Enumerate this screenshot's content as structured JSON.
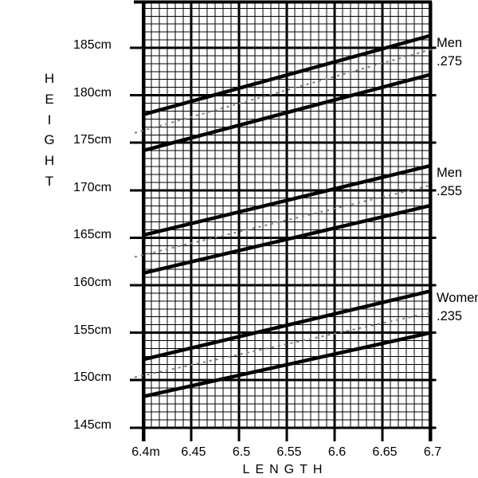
{
  "colors": {
    "background": "#ffffff",
    "grid_line": "#000000",
    "solid_line": "#000000",
    "dotted_line": "#7d7d7d",
    "text": "#000000"
  },
  "chart_data": {
    "type": "line",
    "title": "",
    "xlabel": "LENGTH",
    "ylabel": "HEIGHT",
    "xlim": [
      6.4,
      6.7
    ],
    "ylim": [
      145,
      190
    ],
    "grid": {
      "style": "graph-paper",
      "minor_divisions_per_major": 6,
      "major_x_step": 0.05,
      "major_y_step_cm": 5
    },
    "x_ticks": [
      {
        "value": 6.4,
        "label": "6.4m"
      },
      {
        "value": 6.45,
        "label": "6.45"
      },
      {
        "value": 6.5,
        "label": "6.5"
      },
      {
        "value": 6.55,
        "label": "6.55"
      },
      {
        "value": 6.6,
        "label": "6.6"
      },
      {
        "value": 6.65,
        "label": "6.65"
      },
      {
        "value": 6.7,
        "label": "6.7"
      }
    ],
    "y_ticks": [
      {
        "value": 185,
        "label": "185cm"
      },
      {
        "value": 180,
        "label": "180cm"
      },
      {
        "value": 175,
        "label": "175cm"
      },
      {
        "value": 170,
        "label": "170cm"
      },
      {
        "value": 165,
        "label": "165cm"
      },
      {
        "value": 160,
        "label": "160cm"
      },
      {
        "value": 155,
        "label": "155cm"
      },
      {
        "value": 150,
        "label": "150cm"
      },
      {
        "value": 145,
        "label": "145cm"
      }
    ],
    "series_groups": [
      {
        "name": "Men .275",
        "label_lines": [
          "Men",
          ".275"
        ],
        "lines": [
          {
            "role": "upper_bound",
            "style": "solid",
            "x": [
              6.4,
              6.7
            ],
            "height_cm": [
              178.0,
              186.3
            ]
          },
          {
            "role": "mean",
            "style": "dotted",
            "x": [
              6.4,
              6.7
            ],
            "height_cm": [
              176.3,
              184.8
            ]
          },
          {
            "role": "lower_bound",
            "style": "solid",
            "x": [
              6.4,
              6.7
            ],
            "height_cm": [
              174.2,
              182.2
            ]
          }
        ]
      },
      {
        "name": "Men .255",
        "label_lines": [
          "Men",
          ".255"
        ],
        "lines": [
          {
            "role": "upper_bound",
            "style": "solid",
            "x": [
              6.4,
              6.7
            ],
            "height_cm": [
              165.3,
              172.6
            ]
          },
          {
            "role": "mean",
            "style": "dotted",
            "x": [
              6.4,
              6.7
            ],
            "height_cm": [
              163.2,
              170.5
            ]
          },
          {
            "role": "lower_bound",
            "style": "solid",
            "x": [
              6.4,
              6.7
            ],
            "height_cm": [
              161.3,
              168.4
            ]
          }
        ]
      },
      {
        "name": "Women .235",
        "label_lines": [
          "Women",
          ".235"
        ],
        "lines": [
          {
            "role": "upper_bound",
            "style": "solid",
            "x": [
              6.4,
              6.7
            ],
            "height_cm": [
              152.2,
              159.4
            ]
          },
          {
            "role": "mean",
            "style": "dotted",
            "x": [
              6.4,
              6.7
            ],
            "height_cm": [
              150.5,
              157.1
            ]
          },
          {
            "role": "lower_bound",
            "style": "solid",
            "x": [
              6.4,
              6.7
            ],
            "height_cm": [
              148.3,
              155.0
            ]
          }
        ]
      }
    ]
  }
}
